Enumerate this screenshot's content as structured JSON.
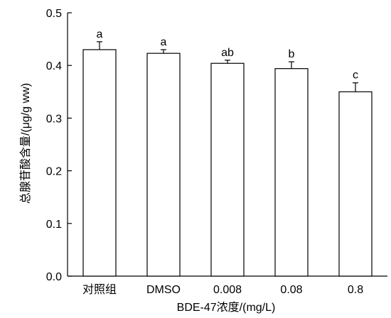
{
  "chart_data": {
    "type": "bar",
    "categories": [
      "对照组",
      "DMSO",
      "0.008",
      "0.08",
      "0.8"
    ],
    "values": [
      0.43,
      0.423,
      0.404,
      0.394,
      0.35
    ],
    "errors": [
      0.015,
      0.007,
      0.006,
      0.013,
      0.017
    ],
    "significance": [
      "a",
      "a",
      "ab",
      "b",
      "c"
    ],
    "xlabel": "BDE-47浓度/(mg/L)",
    "ylabel": "总腺苷酸含量/(μg/g ww)",
    "ylim": [
      0.0,
      0.5
    ],
    "yticks": [
      0.0,
      0.1,
      0.2,
      0.3,
      0.4,
      0.5
    ],
    "ytick_labels": [
      "0.0",
      "0.1",
      "0.2",
      "0.3",
      "0.4",
      "0.5"
    ],
    "grid": false,
    "bar_fill": "#ffffff",
    "bar_stroke": "#000000"
  }
}
